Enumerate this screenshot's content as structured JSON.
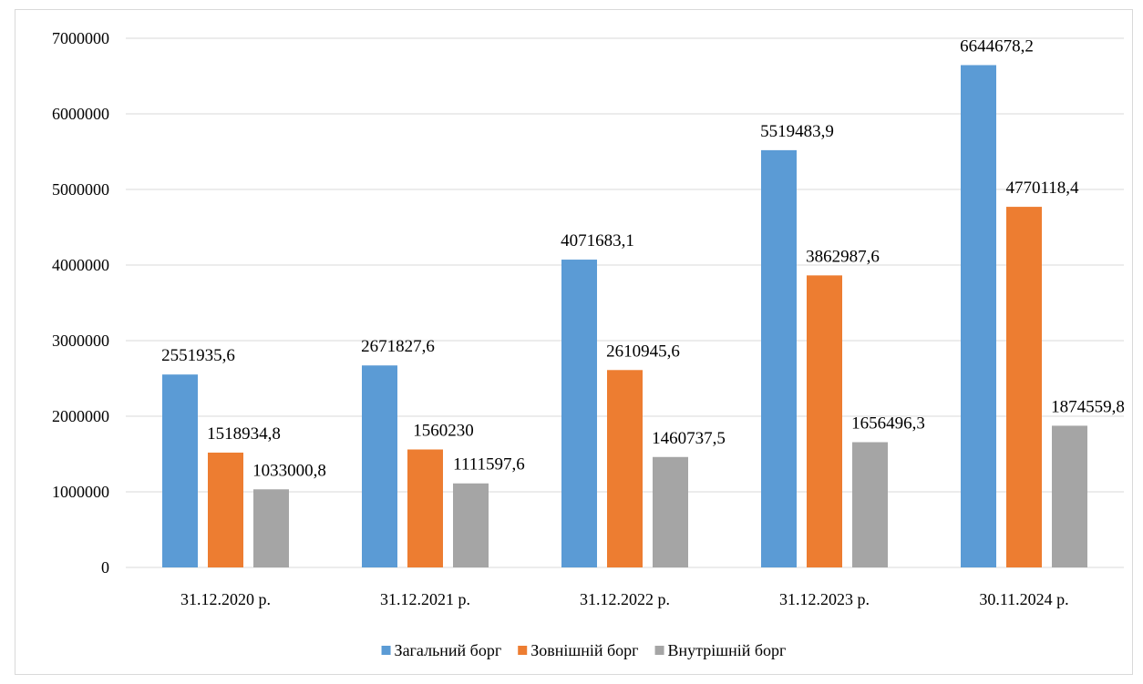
{
  "chart_data": {
    "type": "bar",
    "title": "",
    "xlabel": "",
    "ylabel": "",
    "categories": [
      "31.12.2020 р.",
      "31.12.2021 р.",
      "31.12.2022 р.",
      "31.12.2023 р.",
      "30.11.2024 р."
    ],
    "series": [
      {
        "name": "Загальний борг",
        "color": "#5b9bd5",
        "values": [
          2551935.6,
          2671827.6,
          4071683.1,
          5519483.9,
          6644678.2
        ],
        "labels": [
          "2551935,6",
          "2671827,6",
          "4071683,1",
          "5519483,9",
          "6644678,2"
        ]
      },
      {
        "name": "Зовнішній борг",
        "color": "#ed7d31",
        "values": [
          1518934.8,
          1560230,
          2610945.6,
          3862987.6,
          4770118.4
        ],
        "labels": [
          "1518934,8",
          "1560230",
          "2610945,6",
          "3862987,6",
          "4770118,4"
        ]
      },
      {
        "name": "Внутрішній борг",
        "color": "#a5a5a5",
        "values": [
          1033000.8,
          1111597.6,
          1460737.5,
          1656496.3,
          1874559.8
        ],
        "labels": [
          "1033000,8",
          "1111597,6",
          "1460737,5",
          "1656496,3",
          "1874559,8"
        ]
      }
    ],
    "ylim": [
      0,
      7000000
    ],
    "yticks": [
      0,
      1000000,
      2000000,
      3000000,
      4000000,
      5000000,
      6000000,
      7000000
    ],
    "ytick_labels": [
      "0",
      "1000000",
      "2000000",
      "3000000",
      "4000000",
      "5000000",
      "6000000",
      "7000000"
    ],
    "grid": true,
    "legend_position": "bottom"
  }
}
